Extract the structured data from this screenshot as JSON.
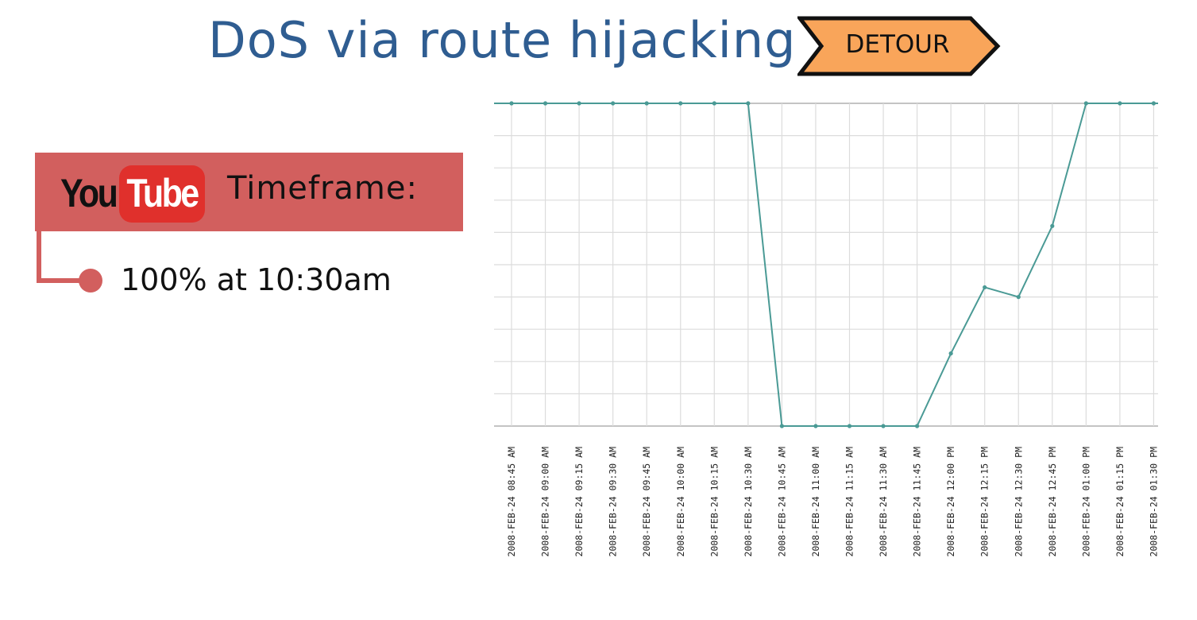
{
  "title": "DoS via route hijacking",
  "badge": {
    "label": "DETOUR",
    "fill": "#f9a55a"
  },
  "panel": {
    "logo_you": "You",
    "logo_tube": "Tube",
    "label": "Timeframe:",
    "color": "#d25f5e"
  },
  "note": "100% at 10:30am",
  "chart_data": {
    "type": "line",
    "categories": [
      "2008-FEB-24 08:45 AM",
      "2008-FEB-24 09:00 AM",
      "2008-FEB-24 09:15 AM",
      "2008-FEB-24 09:30 AM",
      "2008-FEB-24 09:45 AM",
      "2008-FEB-24 10:00 AM",
      "2008-FEB-24 10:15 AM",
      "2008-FEB-24 10:30 AM",
      "2008-FEB-24 10:45 AM",
      "2008-FEB-24 11:00 AM",
      "2008-FEB-24 11:15 AM",
      "2008-FEB-24 11:30 AM",
      "2008-FEB-24 11:45 AM",
      "2008-FEB-24 12:00 PM",
      "2008-FEB-24 12:15 PM",
      "2008-FEB-24 12:30 PM",
      "2008-FEB-24 12:45 PM",
      "2008-FEB-24 01:00 PM",
      "2008-FEB-24 01:15 PM",
      "2008-FEB-24 01:30 PM"
    ],
    "values": [
      100,
      100,
      100,
      100,
      100,
      100,
      100,
      100,
      0,
      0,
      0,
      0,
      0,
      22.5,
      43,
      40,
      62,
      100,
      100,
      100
    ],
    "ylim": [
      0,
      100
    ],
    "y_gridlines": 10,
    "grid": true,
    "line_color": "#4a9a95"
  }
}
